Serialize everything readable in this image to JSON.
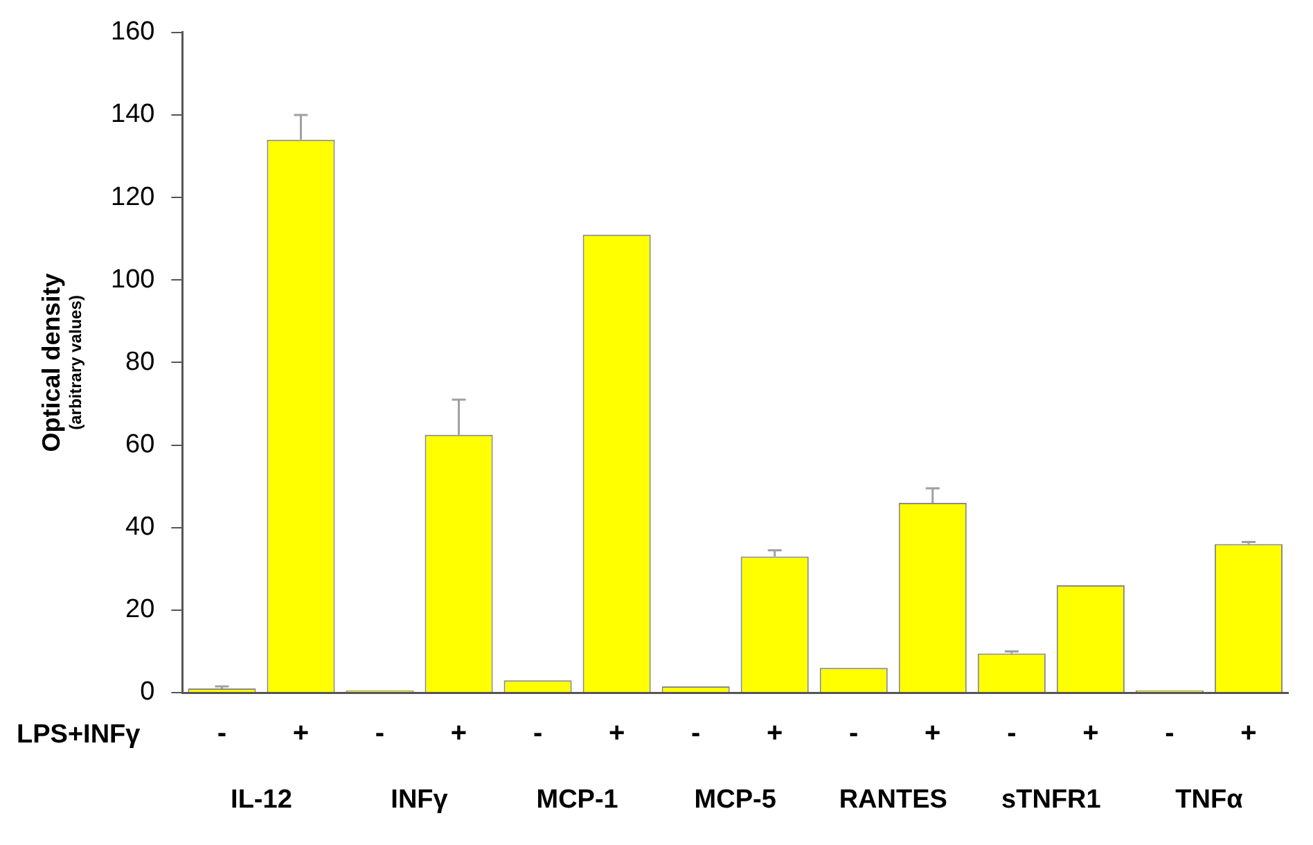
{
  "chart_data": {
    "type": "bar",
    "ylabel": "Optical density\n(arbitrary values)",
    "categories": [
      "-",
      "+",
      "-",
      "+",
      "-",
      "+",
      "-",
      "+",
      "-",
      "+",
      "-",
      "+",
      "-",
      "+"
    ],
    "values": [
      1,
      134,
      0.5,
      62.5,
      3,
      111,
      1.5,
      33,
      6,
      46,
      9.5,
      26,
      0.5,
      36
    ],
    "errors": [
      [
        1,
        1.5
      ],
      [
        134,
        140
      ],
      null,
      [
        62.5,
        71
      ],
      null,
      null,
      null,
      [
        33,
        34.5
      ],
      null,
      [
        46,
        49.5
      ],
      [
        9.5,
        10
      ],
      null,
      null,
      [
        36,
        36.5
      ]
    ],
    "color": "#ffff00",
    "ylim": [
      0,
      160
    ],
    "yticks": [
      0,
      20,
      40,
      60,
      80,
      100,
      120,
      140,
      160
    ],
    "grid": false,
    "legend": false,
    "annotations": [
      "LPS+INFγ",
      "IL-12",
      "INFγ",
      "MCP-1",
      "MCP-5",
      "RANTES",
      "sTNFR1",
      "TNFα"
    ]
  }
}
